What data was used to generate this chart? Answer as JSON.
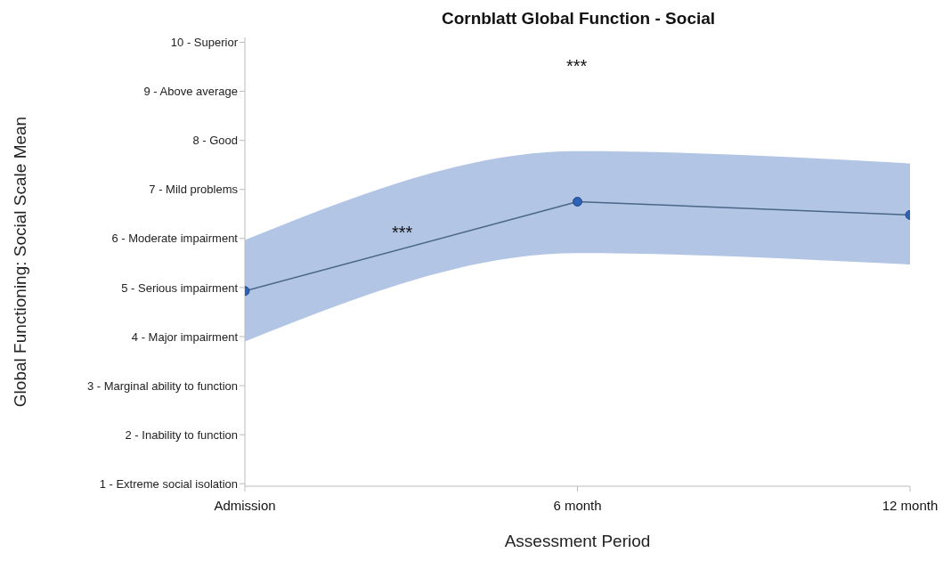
{
  "chart_data": {
    "type": "line",
    "title": "Cornblatt Global Function - Social",
    "xlabel": "Assessment Period",
    "ylabel": "Global Functioning: Social Scale Mean",
    "categories": [
      "Admission",
      "6 month",
      "12 month"
    ],
    "series": [
      {
        "color": "#2f62b5",
        "values": [
          4.93,
          6.75,
          6.48
        ],
        "lower": [
          3.9,
          5.7,
          5.47
        ],
        "upper": [
          5.97,
          7.78,
          7.53
        ]
      }
    ],
    "ylim": [
      0.95,
      10.1
    ],
    "yticks": [
      {
        "value": 1,
        "label": "1 - Extreme social isolation"
      },
      {
        "value": 2,
        "label": "2 - Inability to function"
      },
      {
        "value": 3,
        "label": "3 - Marginal ability to function"
      },
      {
        "value": 4,
        "label": "4 - Major impairment"
      },
      {
        "value": 5,
        "label": "5 - Serious impairment"
      },
      {
        "value": 6,
        "label": "6 - Moderate impairment"
      },
      {
        "value": 7,
        "label": "7 - Mild problems"
      },
      {
        "value": 8,
        "label": "8 - Good"
      },
      {
        "value": 9,
        "label": "9 - Above average"
      },
      {
        "value": 10,
        "label": "10 - Superior"
      }
    ],
    "annotations": [
      "***",
      "***"
    ],
    "marker": "circle",
    "line_style": "solid",
    "grid": false,
    "legend": false
  }
}
